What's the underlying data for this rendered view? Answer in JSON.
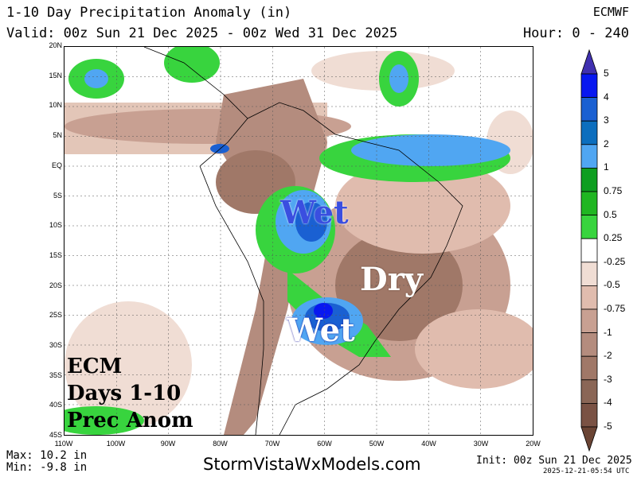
{
  "header": {
    "title": "1-10 Day Precipitation Anomaly (in)",
    "valid": "Valid: 00z Sun 21 Dec 2025 - 00z Wed 31 Dec 2025",
    "model": "ECMWF",
    "hour": "Hour: 0 - 240"
  },
  "map": {
    "lat_labels": [
      "20N",
      "15N",
      "10N",
      "5N",
      "EQ",
      "5S",
      "10S",
      "15S",
      "20S",
      "25S",
      "30S",
      "35S",
      "40S",
      "45S"
    ],
    "lon_labels": [
      "110W",
      "100W",
      "90W",
      "80W",
      "70W",
      "60W",
      "50W",
      "40W",
      "30W",
      "20W"
    ],
    "annotations": {
      "wet_north": "Wet",
      "dry": "Dry",
      "wet_south": "Wet"
    },
    "label_block": [
      "ECM",
      "Days 1-10",
      "Prec Anom"
    ]
  },
  "colorbar": {
    "labels": [
      "5",
      "4",
      "3",
      "2",
      "1",
      "0.75",
      "0.5",
      "0.25",
      "-0.25",
      "-0.5",
      "-0.75",
      "-1",
      "-2",
      "-3",
      "-4",
      "-5"
    ],
    "colors": [
      "#0818f0",
      "#1a60d2",
      "#0c6ebe",
      "#50a6f2",
      "#0e9e20",
      "#20b622",
      "#38d43e",
      "#ffffff",
      "#f0ddd4",
      "#e0bcae",
      "#c8a092",
      "#b48c7e",
      "#a07868",
      "#8a6656",
      "#7a5244"
    ],
    "top_arrow": "#4030b0",
    "bottom_arrow": "#6a4434"
  },
  "footer": {
    "max": "Max: 10.2 in",
    "min": "Min: -9.8 in",
    "site": "StormVistaWxModels.com",
    "init": "Init: 00z Sun 21 Dec 2025",
    "timestamp": "2025-12-21-05:54 UTC"
  }
}
